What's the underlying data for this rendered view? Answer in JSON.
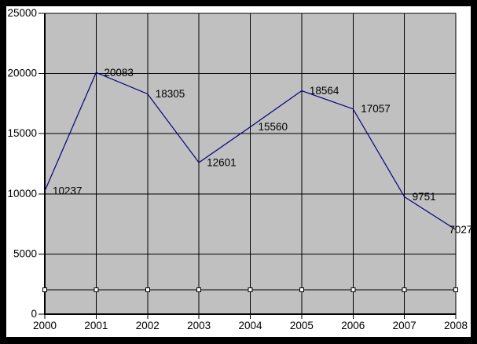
{
  "window": {
    "frame_border_color": "#000000",
    "canvas_background": "#ffffff"
  },
  "chart_data": {
    "type": "line",
    "title": "",
    "xlabel": "",
    "ylabel": "",
    "categories": [
      "2000",
      "2001",
      "2002",
      "2003",
      "2004",
      "2005",
      "2006",
      "2007",
      "2008"
    ],
    "series": [
      {
        "name": "main-series",
        "color": "#000080",
        "marker": "none",
        "values": [
          10237,
          20083,
          18305,
          12601,
          15560,
          18564,
          17057,
          9751,
          7027
        ],
        "point_labels": [
          "10237",
          "20083",
          "18305",
          "12601",
          "15560",
          "18564",
          "17057",
          "9751",
          "7027"
        ]
      },
      {
        "name": "flat-marker-series",
        "color": "#000000",
        "marker": "square-white",
        "values": [
          2000,
          2000,
          2000,
          2000,
          2000,
          2000,
          2000,
          2000,
          2000
        ],
        "point_labels": []
      }
    ],
    "ylim": [
      0,
      25000
    ],
    "y_tick_interval": 5000,
    "y_tick_labels": [
      "0",
      "5000",
      "10000",
      "15000",
      "20000",
      "25000"
    ],
    "x_tick_labels": [
      "2000",
      "2001",
      "2002",
      "2003",
      "2004",
      "2005",
      "2006",
      "2007",
      "2008"
    ],
    "grid": true,
    "legend": "none",
    "colors": {
      "plot_background": "#c0c0c0",
      "gridline": "#000000",
      "plot_border": "#808080",
      "axis": "#000000",
      "text": "#000000",
      "marker_fill": "#ffffff",
      "canvas_background": "#ffffff"
    }
  }
}
